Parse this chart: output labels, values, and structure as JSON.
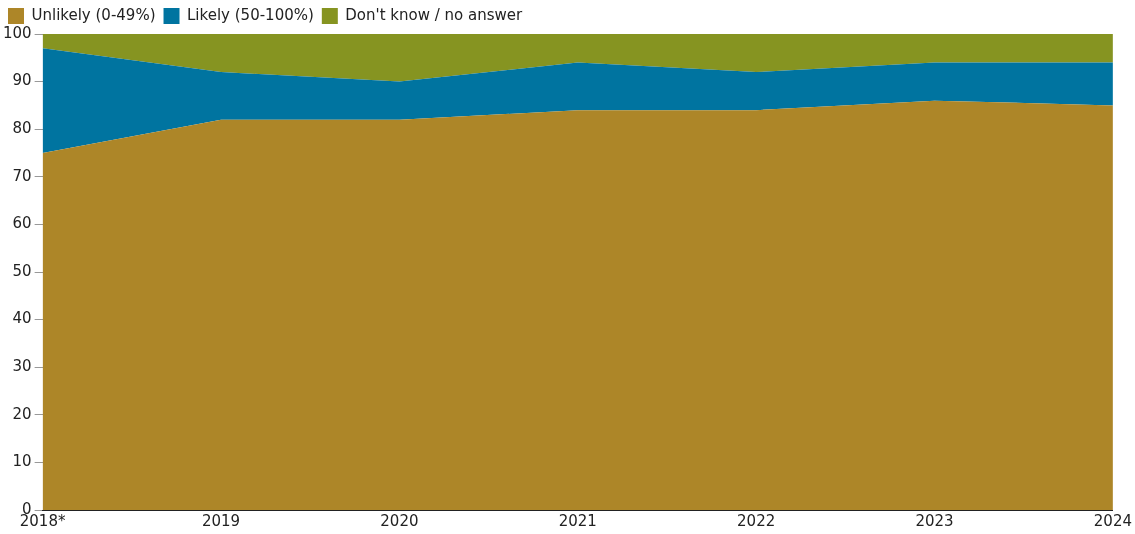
{
  "chart_data": {
    "type": "area",
    "stacked": true,
    "legend": "top left",
    "grid": false,
    "categories": [
      "2018*",
      "2019",
      "2020",
      "2021",
      "2022",
      "2023",
      "2024"
    ],
    "series": [
      {
        "name": "Unlikely (0-49%)",
        "color": "#ad8628",
        "values": [
          75,
          82,
          82,
          84,
          84,
          86,
          85
        ]
      },
      {
        "name": "Likely (50-100%)",
        "color": "#0074a0",
        "values": [
          22,
          10,
          8,
          10,
          8,
          8,
          9
        ]
      },
      {
        "name": "Don't know / no answer",
        "color": "#869421",
        "values": [
          3,
          8,
          10,
          6,
          8,
          6,
          6
        ]
      }
    ],
    "ylim": [
      0,
      100
    ],
    "yticks": [
      0,
      10,
      20,
      30,
      40,
      50,
      60,
      70,
      80,
      90,
      100
    ]
  }
}
